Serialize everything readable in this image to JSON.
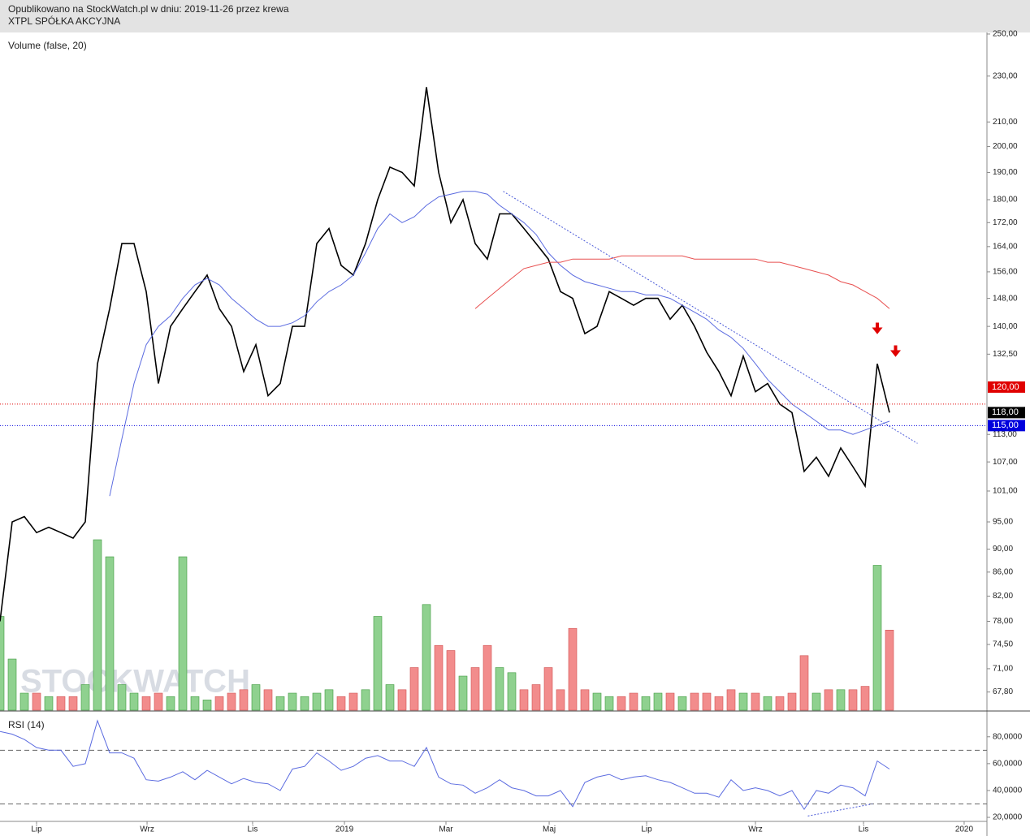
{
  "header": {
    "line1": "Opublikowano na StockWatch.pl w dniu: 2019-11-26 przez krewa",
    "line2": "XTPL SPÓŁKA AKCYJNA",
    "watermark": "STOCKWATCH"
  },
  "chart_data": [
    {
      "type": "line",
      "subtitle": "Volume (false, 20)",
      "log_scale": true,
      "xlim": [
        0,
        81
      ],
      "ylim": [
        65.5,
        252
      ],
      "y2lim": [
        0,
        100
      ],
      "x": [
        0,
        1,
        2,
        3,
        4,
        5,
        6,
        7,
        8,
        9,
        10,
        11,
        12,
        13,
        14,
        15,
        16,
        17,
        18,
        19,
        20,
        21,
        22,
        23,
        24,
        25,
        26,
        27,
        28,
        29,
        30,
        31,
        32,
        33,
        34,
        35,
        36,
        37,
        38,
        39,
        40,
        41,
        42,
        43,
        44,
        45,
        46,
        47,
        48,
        49,
        50,
        51,
        52,
        53,
        54,
        55,
        56,
        57,
        58,
        59,
        60,
        61,
        62,
        63,
        64,
        65,
        66,
        67,
        68,
        69,
        70,
        71,
        72,
        73
      ],
      "yticks": [
        {
          "value": 250,
          "label": "250,00"
        },
        {
          "value": 230,
          "label": "230,00"
        },
        {
          "value": 210,
          "label": "210,00"
        },
        {
          "value": 200,
          "label": "200,00"
        },
        {
          "value": 190,
          "label": "190,00"
        },
        {
          "value": 180,
          "label": "180,00"
        },
        {
          "value": 172,
          "label": "172,00"
        },
        {
          "value": 164,
          "label": "164,00"
        },
        {
          "value": 156,
          "label": "156,00"
        },
        {
          "value": 148,
          "label": "148,00"
        },
        {
          "value": 140,
          "label": "140,00"
        },
        {
          "value": 132.5,
          "label": "132,50"
        },
        {
          "value": 113,
          "label": "113,00"
        },
        {
          "value": 107,
          "label": "107,00"
        },
        {
          "value": 101,
          "label": "101,00"
        },
        {
          "value": 95,
          "label": "95,00"
        },
        {
          "value": 90,
          "label": "90,00"
        },
        {
          "value": 86,
          "label": "86,00"
        },
        {
          "value": 82,
          "label": "82,00"
        },
        {
          "value": 78,
          "label": "78,00"
        },
        {
          "value": 74.5,
          "label": "74,50"
        },
        {
          "value": 71,
          "label": "71,00"
        },
        {
          "value": 67.8,
          "label": "67,80"
        }
      ],
      "series": [
        {
          "color": "#000000",
          "values": [
            78,
            95,
            96,
            93,
            94,
            93,
            92,
            95,
            130,
            145,
            165,
            165,
            150,
            125,
            140,
            145,
            150,
            155,
            145,
            140,
            128,
            135,
            122,
            125,
            140,
            140,
            165,
            170,
            158,
            155,
            165,
            180,
            192,
            190,
            185,
            225,
            190,
            172,
            180,
            165,
            160,
            175,
            175,
            170,
            165,
            160,
            150,
            148,
            138,
            140,
            150,
            148,
            146,
            148,
            148,
            142,
            146,
            140,
            133,
            128,
            122,
            132,
            123,
            125,
            120,
            118,
            105,
            108,
            104,
            110,
            106,
            102,
            130,
            118
          ]
        },
        {
          "color": "#5b6be0",
          "values": [
            null,
            null,
            null,
            null,
            null,
            null,
            null,
            null,
            null,
            100,
            112,
            125,
            135,
            140,
            143,
            148,
            152,
            154,
            152,
            148,
            145,
            142,
            140,
            140,
            141,
            143,
            147,
            150,
            152,
            155,
            162,
            170,
            175,
            172,
            174,
            178,
            181,
            182,
            183,
            183,
            182,
            178,
            175,
            172,
            168,
            162,
            158,
            155,
            153,
            152,
            151,
            150,
            150,
            149,
            149,
            148,
            146,
            144,
            142,
            139,
            137,
            134,
            130,
            126,
            123,
            120,
            118,
            116,
            114,
            114,
            113,
            114,
            115,
            116
          ]
        },
        {
          "color": "#e85050",
          "values": [
            null,
            null,
            null,
            null,
            null,
            null,
            null,
            null,
            null,
            null,
            null,
            null,
            null,
            null,
            null,
            null,
            null,
            null,
            null,
            null,
            null,
            null,
            null,
            null,
            null,
            null,
            null,
            null,
            null,
            null,
            null,
            null,
            null,
            null,
            null,
            null,
            null,
            null,
            null,
            145,
            148,
            151,
            154,
            157,
            158,
            159,
            159,
            160,
            160,
            160,
            160,
            161,
            161,
            161,
            161,
            161,
            161,
            160,
            160,
            160,
            160,
            160,
            160,
            159,
            159,
            158,
            157,
            156,
            155,
            153,
            152,
            150,
            148,
            145
          ]
        },
        {
          "type": "bar",
          "axis": "y2",
          "up_color": "#8fd18f",
          "down_color": "#f28c8c",
          "values": [
            55,
            30,
            10,
            10,
            8,
            8,
            8,
            15,
            100,
            90,
            15,
            10,
            8,
            10,
            8,
            90,
            8,
            6,
            8,
            10,
            12,
            15,
            12,
            8,
            10,
            8,
            10,
            12,
            8,
            10,
            12,
            55,
            15,
            12,
            25,
            62,
            38,
            35,
            20,
            25,
            38,
            25,
            22,
            12,
            15,
            25,
            12,
            48,
            12,
            10,
            8,
            8,
            10,
            8,
            10,
            10,
            8,
            10,
            10,
            8,
            12,
            10,
            10,
            8,
            8,
            10,
            32,
            10,
            12,
            12,
            12,
            14,
            85,
            47
          ]
        }
      ],
      "trendlines": [
        {
          "x": [
            41.3,
            75.3
          ],
          "y": [
            183,
            111
          ],
          "color": "#4a5ad8"
        }
      ],
      "price_levels": [
        {
          "value": 120,
          "label": "120,00",
          "color": "#e00000",
          "line": true
        },
        {
          "value": 118,
          "label": "118,00",
          "color": "#000000",
          "line": false
        },
        {
          "value": 115,
          "label": "115,00",
          "color": "#0000dd",
          "line": true
        }
      ],
      "arrows": [
        72,
        73.5
      ]
    },
    {
      "type": "line",
      "subtitle": "RSI (14)",
      "ylim": [
        17,
        98
      ],
      "yticks": [
        {
          "value": 80,
          "label": "80,0000"
        },
        {
          "value": 60,
          "label": "60,0000"
        },
        {
          "value": 40,
          "label": "40,0000"
        },
        {
          "value": 20,
          "label": "20,0000"
        }
      ],
      "levels": [
        70,
        30
      ],
      "xticks": [
        {
          "value": 3,
          "label": "Lip"
        },
        {
          "value": 12.07,
          "label": "Wrz"
        },
        {
          "value": 20.73,
          "label": "Lis"
        },
        {
          "value": 28.27,
          "label": "2019"
        },
        {
          "value": 36.6,
          "label": "Mar"
        },
        {
          "value": 45.07,
          "label": "Maj"
        },
        {
          "value": 53.07,
          "label": "Lip"
        },
        {
          "value": 62,
          "label": "Wrz"
        },
        {
          "value": 70.87,
          "label": "Lis"
        },
        {
          "value": 79.13,
          "label": "2020"
        }
      ],
      "series": [
        {
          "color": "#5b6be0",
          "values": [
            84,
            82,
            78,
            72,
            70,
            70,
            58,
            60,
            92,
            68,
            68,
            64,
            48,
            47,
            50,
            54,
            48,
            55,
            50,
            45,
            49,
            46,
            45,
            40,
            56,
            58,
            68,
            62,
            55,
            58,
            64,
            66,
            62,
            62,
            58,
            72,
            50,
            45,
            44,
            38,
            42,
            48,
            42,
            40,
            36,
            36,
            40,
            28,
            46,
            50,
            52,
            48,
            50,
            51,
            48,
            46,
            42,
            38,
            38,
            35,
            48,
            40,
            42,
            40,
            36,
            40,
            26,
            40,
            38,
            44,
            42,
            36,
            62,
            56
          ]
        }
      ],
      "trendlines": [
        {
          "x": [
            66.3,
            71.6
          ],
          "y": [
            21,
            30
          ],
          "color": "#4a5ad8"
        }
      ]
    }
  ]
}
